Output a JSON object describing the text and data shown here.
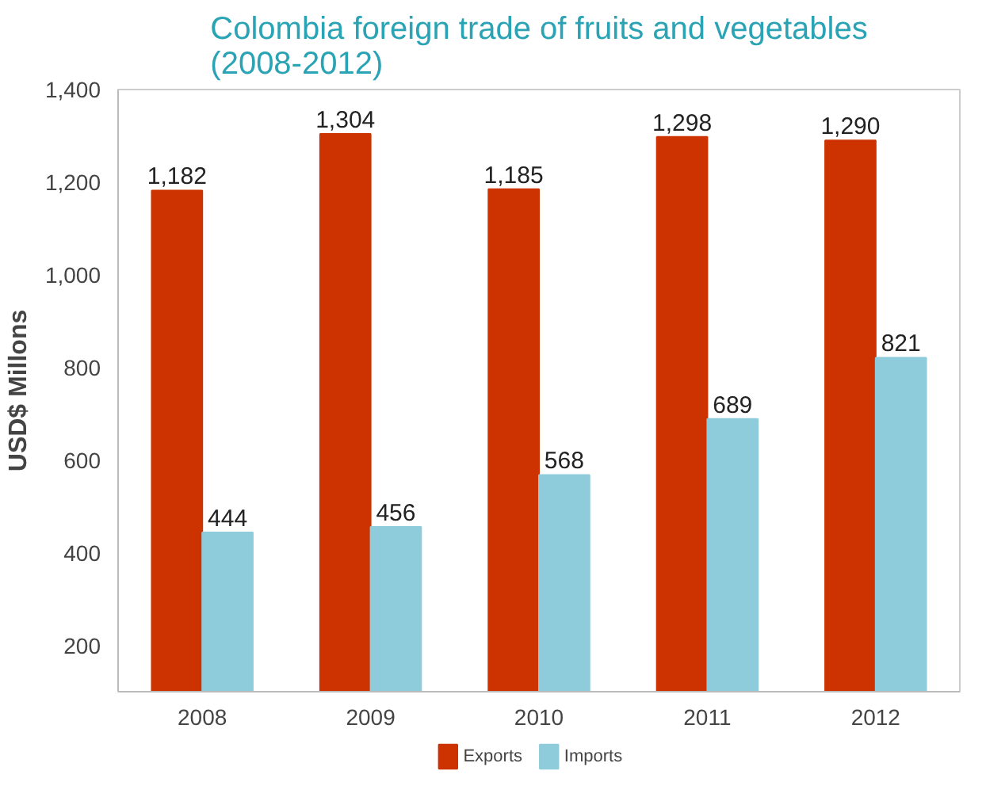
{
  "chart_data": {
    "type": "bar",
    "title": "Colombia foreign trade of fruits and vegetables\n(2008-2012)",
    "ylabel": "USD$ Millons",
    "categories": [
      "2008",
      "2009",
      "2010",
      "2011",
      "2012"
    ],
    "series": [
      {
        "name": "Exports",
        "color": "#cc3300",
        "values": [
          1182,
          1304,
          1185,
          1298,
          1290
        ],
        "value_labels": [
          "1,182",
          "1,304",
          "1,185",
          "1,298",
          "1,290"
        ]
      },
      {
        "name": "Imports",
        "color": "#8ecbdb",
        "values": [
          444,
          456,
          568,
          689,
          821
        ],
        "value_labels": [
          "444",
          "456",
          "568",
          "689",
          "821"
        ]
      }
    ],
    "ylim": [
      100,
      1400
    ],
    "yticks": [
      {
        "value": 200,
        "label": "200"
      },
      {
        "value": 400,
        "label": "400"
      },
      {
        "value": 600,
        "label": "600"
      },
      {
        "value": 800,
        "label": "800"
      },
      {
        "value": 1000,
        "label": "1,000"
      },
      {
        "value": 1200,
        "label": "1,200"
      },
      {
        "value": 1400,
        "label": "1,400"
      }
    ],
    "legend": "bottom"
  }
}
